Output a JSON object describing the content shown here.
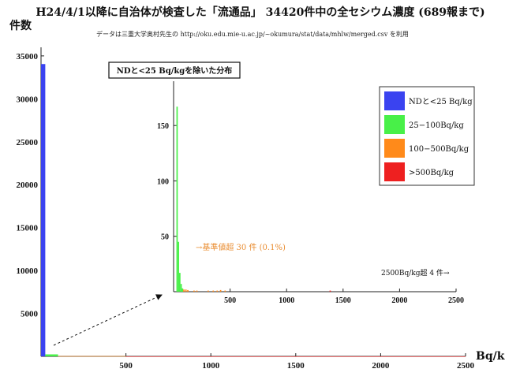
{
  "title": "H24/4/1以降に自治体が検査した「流通品」 34420件中の全セシウム濃度 (689報まで)",
  "subtitle": "データは三重大学奥村先生の http://oku.edu.mie-u.ac.jp/~okumura/stat/data/mhlw/merged.csv を利用",
  "chart_data": [
    {
      "type": "bar",
      "ylabel": "件数",
      "xlabel": "Bq/kg",
      "xlim": [
        0,
        2500
      ],
      "ylim": [
        0,
        36000
      ],
      "x_ticks": [
        500,
        1000,
        1500,
        2000,
        2500
      ],
      "y_ticks": [
        5000,
        10000,
        15000,
        20000,
        25000,
        30000,
        35000
      ],
      "series": [
        {
          "name": "NDと<25 Bq/kg",
          "color": "#3a43f0",
          "bins": [
            {
              "x0": 0,
              "x1": 25,
              "value": 34050
            }
          ]
        },
        {
          "name": "25−100Bq/kg",
          "color": "#48f048",
          "bins": [
            {
              "x0": 25,
              "x1": 100,
              "value": 230
            }
          ]
        },
        {
          "name": "100−500Bq/kg",
          "color": "#ff8a1a",
          "bins": [
            {
              "x0": 100,
              "x1": 500,
              "value": 30
            }
          ]
        },
        {
          "name": ">500Bq/kg",
          "color": "#ee2020",
          "bins": [
            {
              "x0": 500,
              "x1": 2500,
              "value": 2
            }
          ]
        }
      ]
    },
    {
      "type": "bar",
      "title": "NDと<25 Bq/kgを除いた分布",
      "xlim": [
        0,
        2500
      ],
      "ylim": [
        0,
        190
      ],
      "x_ticks": [
        500,
        1000,
        1500,
        2000,
        2500
      ],
      "y_ticks": [
        50,
        100,
        150
      ],
      "bar_width": 12,
      "series": [
        {
          "name": "25−100Bq/kg",
          "color": "#48f048",
          "points": [
            [
              25,
              167
            ],
            [
              37,
              45
            ],
            [
              49,
              17
            ],
            [
              61,
              7
            ],
            [
              73,
              3
            ]
          ]
        },
        {
          "name": "100−500Bq/kg",
          "color": "#ff8a1a",
          "points": [
            [
              85,
              2
            ],
            [
              103,
              2
            ],
            [
              120,
              1.5
            ],
            [
              175,
              1
            ],
            [
              200,
              1
            ],
            [
              300,
              1
            ],
            [
              345,
              1
            ],
            [
              380,
              1
            ],
            [
              410,
              1.5
            ],
            [
              450,
              1
            ]
          ]
        },
        {
          "name": ">500Bq/kg",
          "color": "#ee2020",
          "points": [
            [
              1380,
              1
            ]
          ]
        }
      ],
      "annotations": {
        "limit_text": "→基準値超 30 件 (0.1%)",
        "over_text": "2500Bq/kg超 4 件→"
      }
    }
  ],
  "legend": [
    {
      "label": "NDと<25 Bq/kg",
      "color": "#3a43f0"
    },
    {
      "label": "25−100Bq/kg",
      "color": "#48f048"
    },
    {
      "label": "100−500Bq/kg",
      "color": "#ff8a1a"
    },
    {
      "label": ">500Bq/kg",
      "color": "#ee2020"
    }
  ]
}
